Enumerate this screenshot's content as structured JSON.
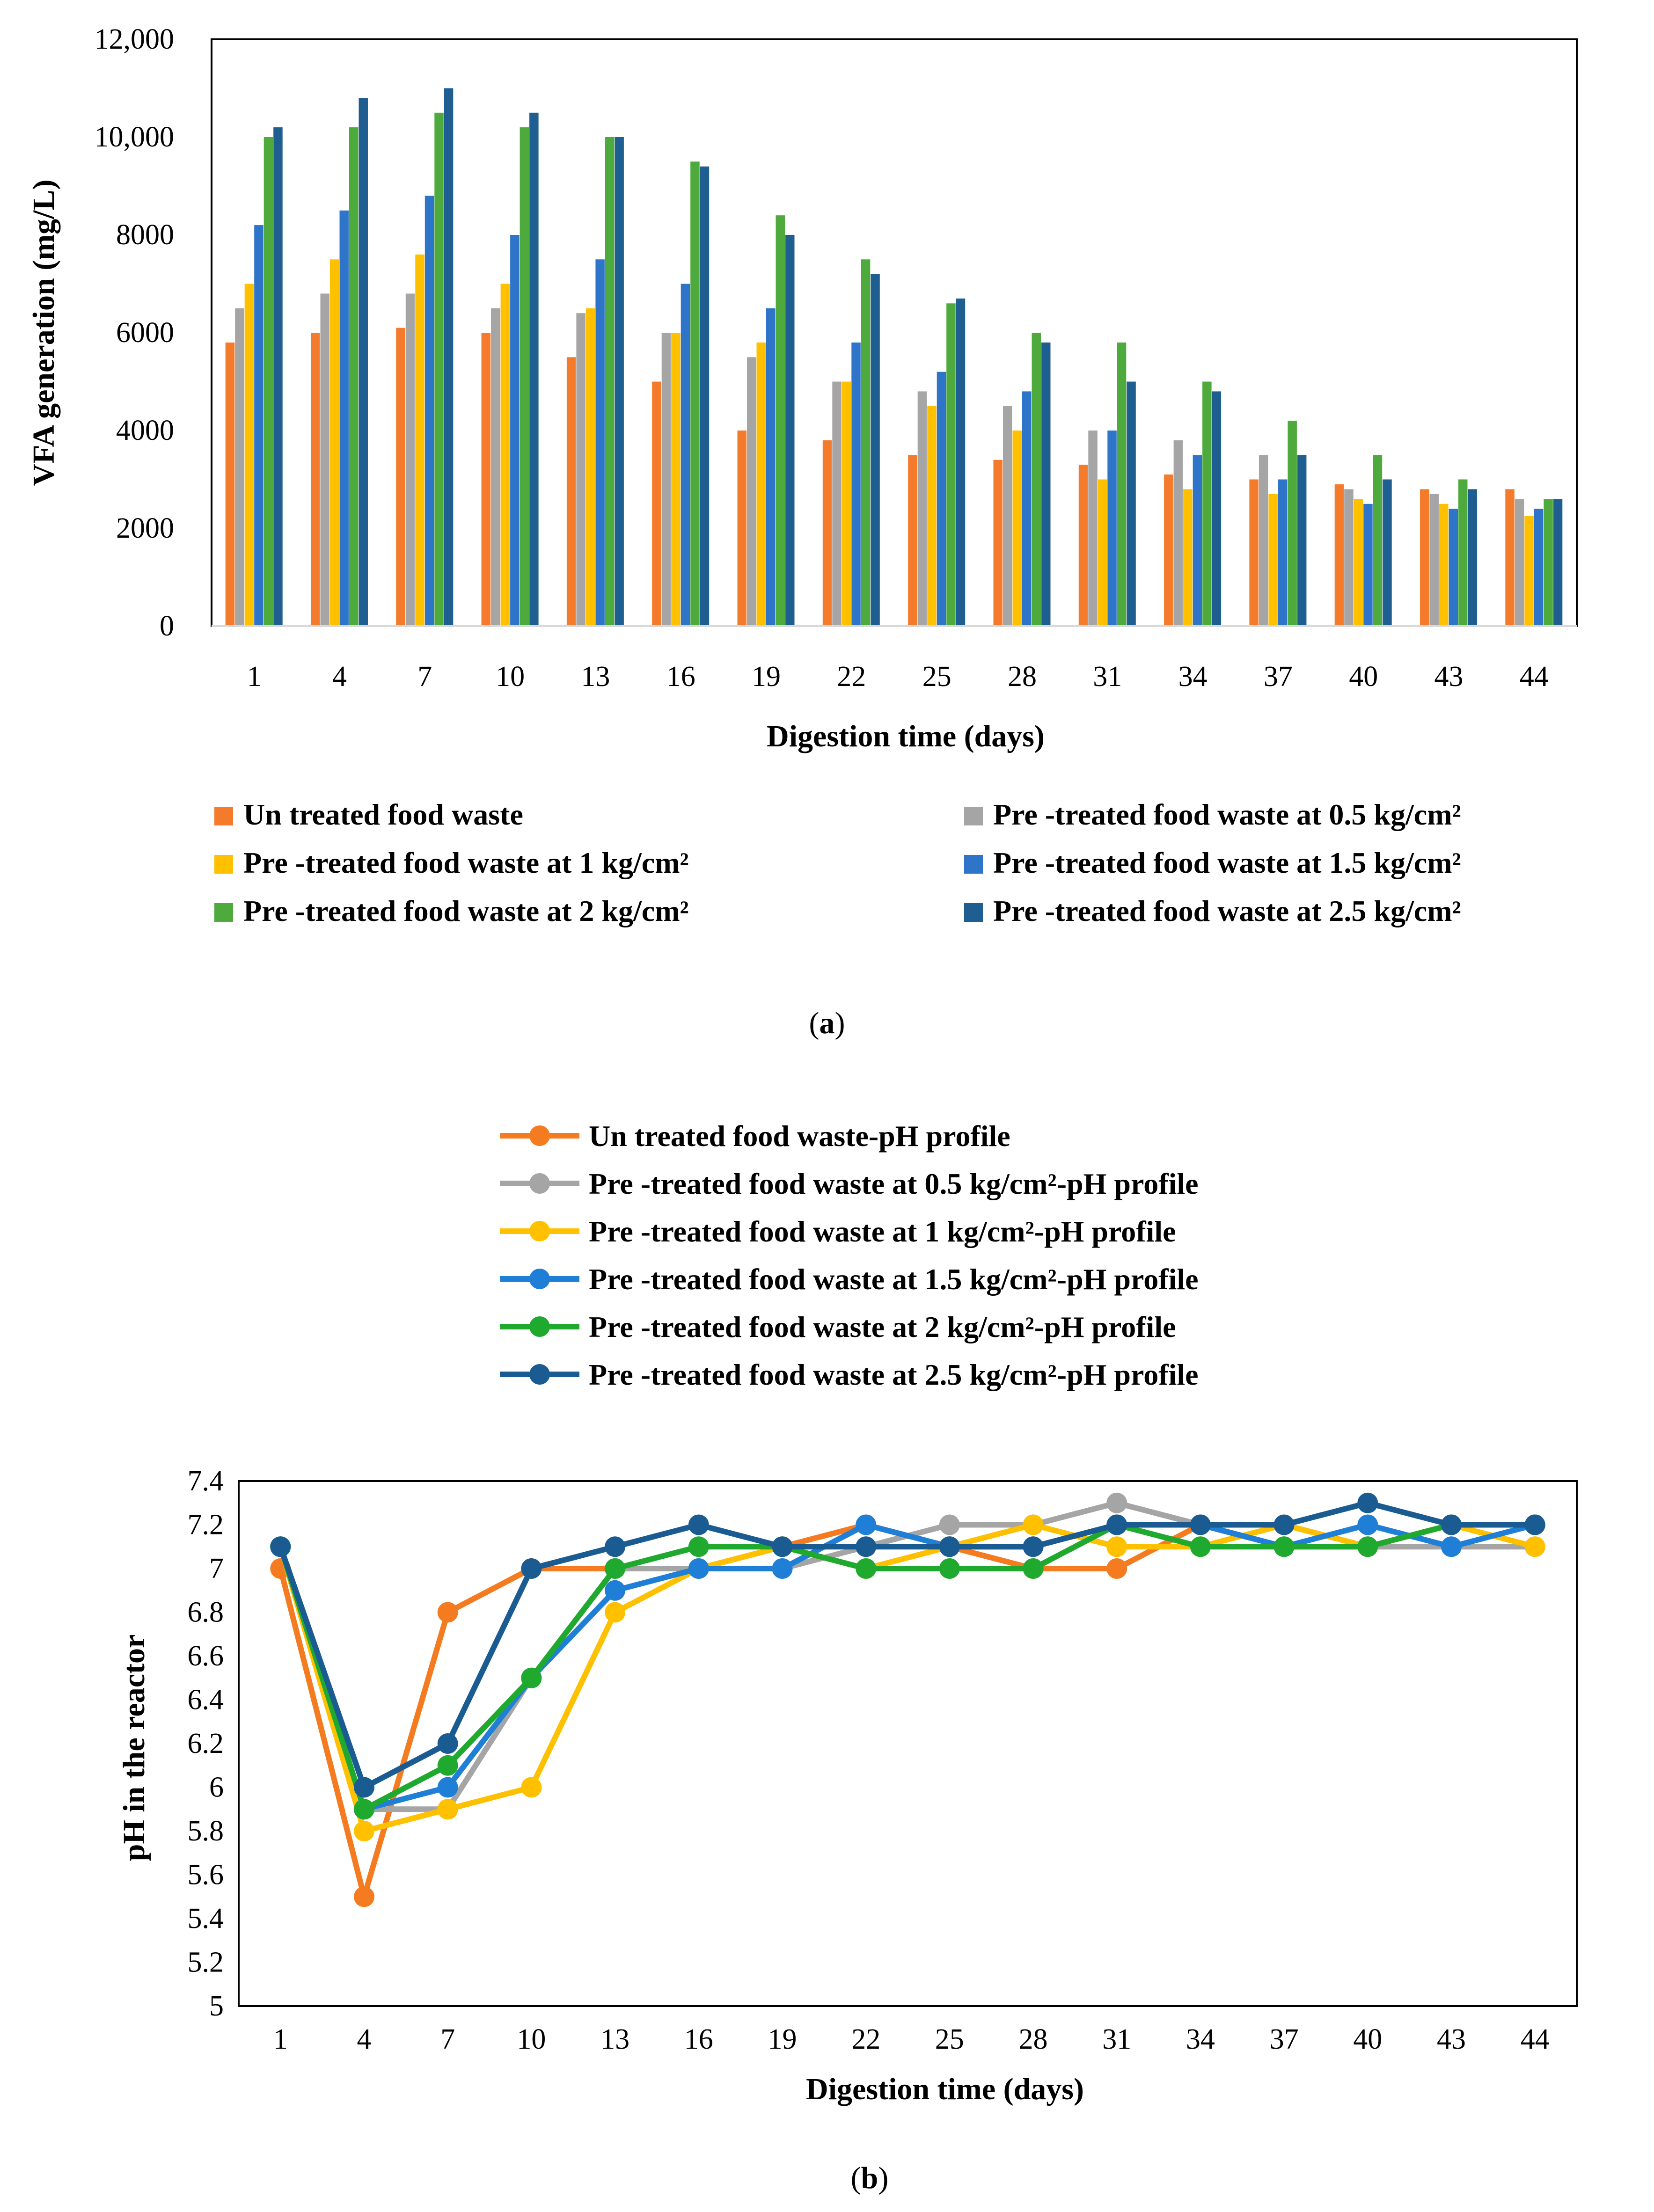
{
  "chart_data": [
    {
      "type": "bar",
      "title": "",
      "caption": "(a)",
      "caption_letter": "a",
      "xlabel": "Digestion time (days)",
      "ylabel": "VFA generation (mg/L)",
      "ylim": [
        0,
        12000
      ],
      "yticks": [
        0,
        2000,
        4000,
        6000,
        8000,
        10000,
        12000
      ],
      "ytick_labels": [
        "0",
        "2000",
        "4000",
        "6000",
        "8000",
        "10,000",
        "12,000"
      ],
      "grid": false,
      "legend_position": "bottom",
      "categories": [
        "1",
        "4",
        "7",
        "10",
        "13",
        "16",
        "19",
        "22",
        "25",
        "28",
        "31",
        "34",
        "37",
        "40",
        "43",
        "44"
      ],
      "series": [
        {
          "name": "Un treated food waste",
          "color": "#F47B2B",
          "values": [
            5800,
            6000,
            6100,
            6000,
            5500,
            5000,
            4000,
            3800,
            3500,
            3400,
            3300,
            3100,
            3000,
            2900,
            2800,
            2800
          ]
        },
        {
          "name": "Pre -treated food waste at 0.5 kg/cm²",
          "color": "#A5A5A5",
          "values": [
            6500,
            6800,
            6800,
            6500,
            6400,
            6000,
            5500,
            5000,
            4800,
            4500,
            4000,
            3800,
            3500,
            2800,
            2700,
            2600
          ]
        },
        {
          "name": "Pre -treated food waste at 1 kg/cm²",
          "color": "#FFC000",
          "values": [
            7000,
            7500,
            7600,
            7000,
            6500,
            6000,
            5800,
            5000,
            4500,
            4000,
            3000,
            2800,
            2700,
            2600,
            2500,
            2250
          ]
        },
        {
          "name": "Pre -treated food waste at 1.5 kg/cm²",
          "color": "#2E75C9",
          "values": [
            8200,
            8500,
            8800,
            8000,
            7500,
            7000,
            6500,
            5800,
            5200,
            4800,
            4000,
            3500,
            3000,
            2500,
            2400,
            2400
          ]
        },
        {
          "name": "Pre -treated food waste at 2 kg/cm²",
          "color": "#4EAA3C",
          "values": [
            10000,
            10200,
            10500,
            10200,
            10000,
            9500,
            8400,
            7500,
            6600,
            6000,
            5800,
            5000,
            4200,
            3500,
            3000,
            2600
          ]
        },
        {
          "name": "Pre -treated food waste at 2.5 kg/cm²",
          "color": "#1F5E91",
          "values": [
            10200,
            10800,
            11000,
            10500,
            10000,
            9400,
            8000,
            7200,
            6700,
            5800,
            5000,
            4800,
            3500,
            3000,
            2800,
            2600
          ]
        }
      ]
    },
    {
      "type": "line",
      "title": "",
      "caption": "(b)",
      "caption_letter": "b",
      "xlabel": "Digestion time (days)",
      "ylabel": "pH in the reactor",
      "ylim": [
        5,
        7.4
      ],
      "yticks": [
        5,
        5.2,
        5.4,
        5.6,
        5.8,
        6,
        6.2,
        6.4,
        6.6,
        6.8,
        7,
        7.2,
        7.4
      ],
      "ytick_labels": [
        "5",
        "5.2",
        "5.4",
        "5.6",
        "5.8",
        "6",
        "6.2",
        "6.4",
        "6.6",
        "6.8",
        "7",
        "7.2",
        "7.4"
      ],
      "grid": false,
      "legend_position": "top",
      "categories": [
        "1",
        "4",
        "7",
        "10",
        "13",
        "16",
        "19",
        "22",
        "25",
        "28",
        "31",
        "34",
        "37",
        "40",
        "43",
        "44"
      ],
      "series": [
        {
          "name": "Un treated food waste-pH profile",
          "color": "#F47B20",
          "values": [
            7.0,
            5.5,
            6.8,
            7.0,
            7.0,
            7.0,
            7.1,
            7.2,
            7.1,
            7.0,
            7.0,
            7.2,
            7.1,
            7.1,
            7.2,
            7.2
          ]
        },
        {
          "name": "Pre -treated food waste at 0.5 kg/cm²-pH profile",
          "color": "#A5A5A5",
          "values": [
            7.1,
            5.9,
            5.9,
            6.5,
            7.0,
            7.0,
            7.0,
            7.1,
            7.2,
            7.2,
            7.3,
            7.2,
            7.2,
            7.1,
            7.1,
            7.1
          ]
        },
        {
          "name": "Pre -treated food waste at 1 kg/cm²-pH profile",
          "color": "#FFC000",
          "values": [
            7.1,
            5.8,
            5.9,
            6.0,
            6.8,
            7.0,
            7.1,
            7.0,
            7.1,
            7.2,
            7.1,
            7.1,
            7.2,
            7.1,
            7.2,
            7.1
          ]
        },
        {
          "name": "Pre -treated food waste at 1.5 kg/cm²-pH profile",
          "color": "#1F7FD6",
          "values": [
            7.1,
            5.9,
            6.0,
            6.5,
            6.9,
            7.0,
            7.0,
            7.2,
            7.1,
            7.1,
            7.2,
            7.2,
            7.1,
            7.2,
            7.1,
            7.2
          ]
        },
        {
          "name": "Pre -treated food waste at 2 kg/cm²-pH profile",
          "color": "#1FAA2F",
          "values": [
            7.1,
            5.9,
            6.1,
            6.5,
            7.0,
            7.1,
            7.1,
            7.0,
            7.0,
            7.0,
            7.2,
            7.1,
            7.1,
            7.1,
            7.2,
            7.2
          ]
        },
        {
          "name": "Pre -treated food waste at 2.5 kg/cm²-pH profile",
          "color": "#1A5C91",
          "values": [
            7.1,
            6.0,
            6.2,
            7.0,
            7.1,
            7.2,
            7.1,
            7.1,
            7.1,
            7.1,
            7.2,
            7.2,
            7.2,
            7.3,
            7.2,
            7.2
          ]
        }
      ]
    }
  ]
}
